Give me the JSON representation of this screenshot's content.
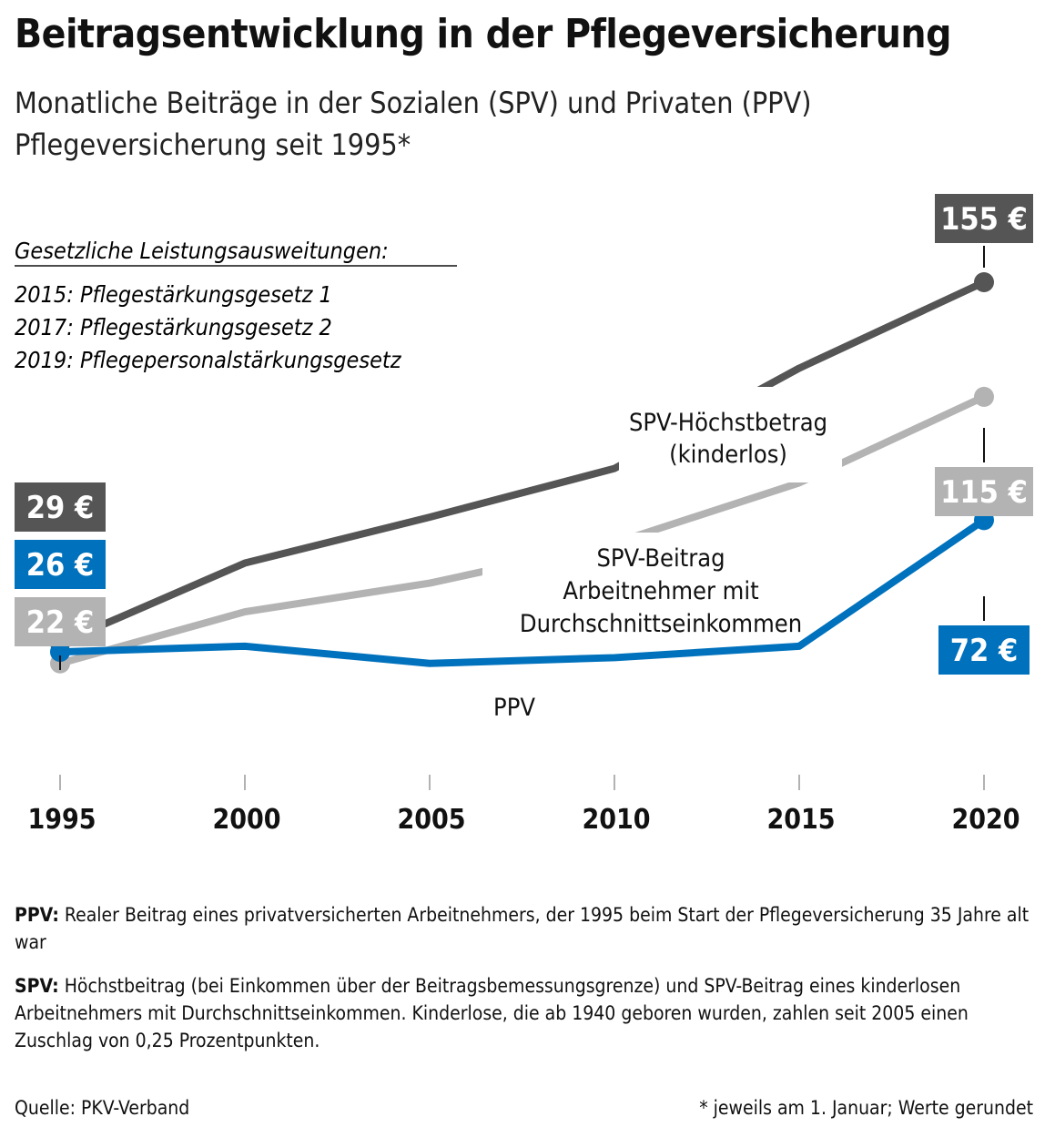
{
  "title": "Beitragsentwicklung in der Pflegeversicherung",
  "subtitle": "Monatliche Beiträge in der Sozialen (SPV) und Privaten (PPV) Pflegeversicherung seit 1995*",
  "notes": {
    "heading": "Gesetzliche Leistungsausweitungen:",
    "items": [
      "2015: Pflegestärkungsgesetz 1",
      "2017: Pflegestärkungsgesetz 2",
      "2019: Pflegepersonalstärkungsgesetz"
    ]
  },
  "chart_data": {
    "type": "line",
    "x": [
      1995,
      2000,
      2005,
      2010,
      2015,
      2020
    ],
    "xlim": [
      1995,
      2020
    ],
    "ylim": [
      0,
      155
    ],
    "grid": false,
    "series": [
      {
        "key": "max",
        "name_lines": [
          "SPV-Höchstbetrag",
          "(kinderlos)"
        ],
        "color": "#555555",
        "values": [
          29,
          57,
          73,
          90,
          125,
          155
        ],
        "start_label": "29 €",
        "end_label": "155 €"
      },
      {
        "key": "avg",
        "name_lines": [
          "SPV-Beitrag",
          "Arbeitnehmer mit",
          "Durchschnittseinkommen"
        ],
        "color": "#b3b3b3",
        "values": [
          22,
          40,
          50,
          64,
          85,
          115
        ],
        "start_label": "22 €",
        "end_label": "115 €"
      },
      {
        "key": "ppv",
        "name_lines": [
          "PPV"
        ],
        "color": "#0071bc",
        "values": [
          26,
          28,
          22,
          24,
          28,
          72
        ],
        "start_label": "26 €",
        "end_label": "72 €"
      }
    ]
  },
  "footnotes": {
    "ppv_term": "PPV:",
    "ppv_text": "Realer Beitrag eines privatversicherten Arbeitnehmers, der 1995 beim Start der Pflegeversicherung 35 Jahre alt war",
    "spv_term": "SPV:",
    "spv_text": "Höchstbeitrag (bei Einkommen über der Beitragsbemessungsgrenze) und SPV-Beitrag eines kinderlosen Arbeitnehmers mit Durchschnittseinkommen. Kinderlose, die ab 1940 geboren wurden, zahlen seit 2005 einen Zuschlag von 0,25 Prozentpunkten."
  },
  "source": "Quelle: PKV-Verband",
  "footnote": "* jeweils am 1. Januar; Werte gerundet"
}
